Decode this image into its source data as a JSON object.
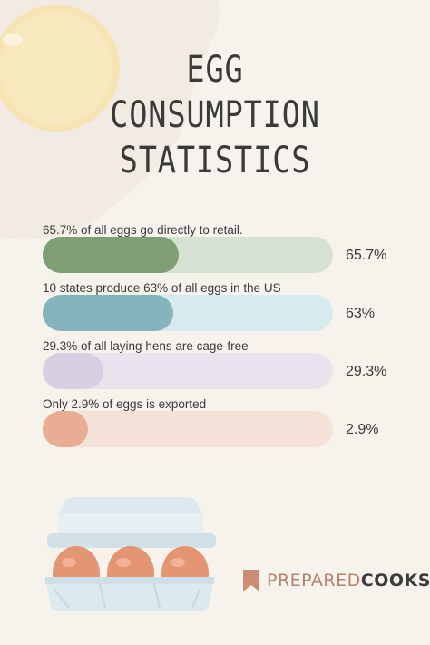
{
  "title_lines": [
    "EGG",
    "CONSUMPTION",
    "STATISTICS"
  ],
  "brand": {
    "light": "PREPARED",
    "bold": "COOKS"
  },
  "chart_data": {
    "type": "bar",
    "title": "EGG CONSUMPTION STATISTICS",
    "orientation": "horizontal",
    "xlim": [
      0,
      100
    ],
    "grid": false,
    "categories": [
      "65.7% of all eggs go directly to retail.",
      "10 states produce 63% of all eggs in the US",
      "29.3% of all laying hens are cage-free",
      "Only 2.9% of eggs is exported"
    ],
    "values": [
      65.7,
      63,
      29.3,
      2.9
    ],
    "value_labels": [
      "65.7%",
      "63%",
      "29.3%",
      "2.9%"
    ],
    "colors": {
      "fills": [
        "#7e9e76",
        "#86b4bc",
        "#d8cfe2",
        "#e8ad93"
      ],
      "tracks": [
        "#d6e2d1",
        "#d7ebee",
        "#e8e3ed",
        "#f5e3d9"
      ]
    }
  }
}
